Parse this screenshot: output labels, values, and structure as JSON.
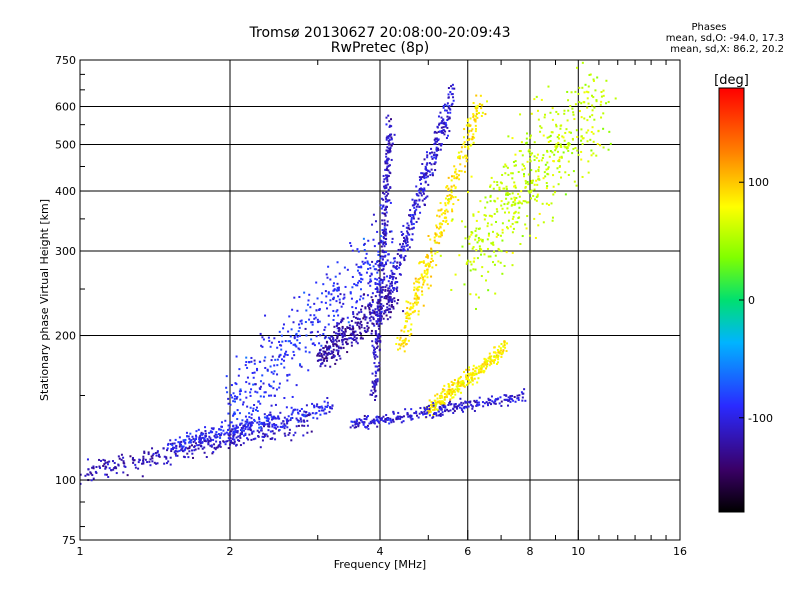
{
  "chart_data": {
    "type": "scatter",
    "title": "Tromsø 20130627 20:08:00-20:09:43",
    "subtitle": "RwPretec (8p)",
    "xlabel": "Frequency [MHz]",
    "ylabel": "Stationary phase Virtual Height [km]",
    "xscale": "log",
    "yscale": "log",
    "xlim": [
      1,
      16
    ],
    "ylim": [
      75,
      750
    ],
    "xticks": [
      1,
      2,
      4,
      6,
      8,
      10,
      16
    ],
    "yticks": [
      75,
      100,
      200,
      300,
      400,
      500,
      600,
      750
    ],
    "grid": true,
    "colorbar": {
      "label": "[deg]",
      "range": [
        -180,
        180
      ],
      "ticks": [
        100,
        0,
        -100
      ],
      "colormap": "rainbow"
    },
    "stats": {
      "header": "Phases",
      "o_mode": "mean, sd,O: -94.0, 17.3",
      "x_mode": "mean, sd,X: 86.2, 20.2"
    },
    "traces": [
      {
        "desc": "low-F E trace",
        "x_range": [
          1.0,
          2.9
        ],
        "h_start": 103,
        "h_end": 132,
        "phase": -115,
        "spread": 0.05
      },
      {
        "desc": "low-F E trace 2",
        "x_range": [
          1.5,
          3.2
        ],
        "h_start": 118,
        "h_end": 142,
        "phase": -95,
        "spread": 0.04
      },
      {
        "desc": "diffuse F region",
        "x_range": [
          2.0,
          4.2
        ],
        "h_start": 140,
        "h_end": 310,
        "phase": -90,
        "spread": 0.18
      },
      {
        "desc": "F1 band",
        "x_range": [
          3.0,
          4.3
        ],
        "h_start": 180,
        "h_end": 240,
        "phase": -120,
        "spread": 0.08
      },
      {
        "desc": "O-trace column",
        "x_range": [
          3.9,
          4.2
        ],
        "h_start": 150,
        "h_end": 560,
        "phase": -110,
        "spread": 0.05
      },
      {
        "desc": "O-trace bend",
        "x_range": [
          4.2,
          5.6
        ],
        "h_start": 250,
        "h_end": 640,
        "phase": -105,
        "spread": 0.06
      },
      {
        "desc": "X-trace",
        "x_range": [
          4.4,
          6.4
        ],
        "h_start": 190,
        "h_end": 620,
        "phase": 88,
        "spread": 0.07
      },
      {
        "desc": "X lower bend",
        "x_range": [
          5.0,
          7.2
        ],
        "h_start": 140,
        "h_end": 190,
        "phase": 85,
        "spread": 0.04
      },
      {
        "desc": "O lower trace",
        "x_range": [
          3.5,
          7.8
        ],
        "h_start": 130,
        "h_end": 150,
        "phase": -105,
        "spread": 0.03
      },
      {
        "desc": "sparse X high",
        "x_range": [
          6.0,
          11.0
        ],
        "h_start": 300,
        "h_end": 620,
        "phase": 60,
        "spread": 0.25
      }
    ]
  }
}
